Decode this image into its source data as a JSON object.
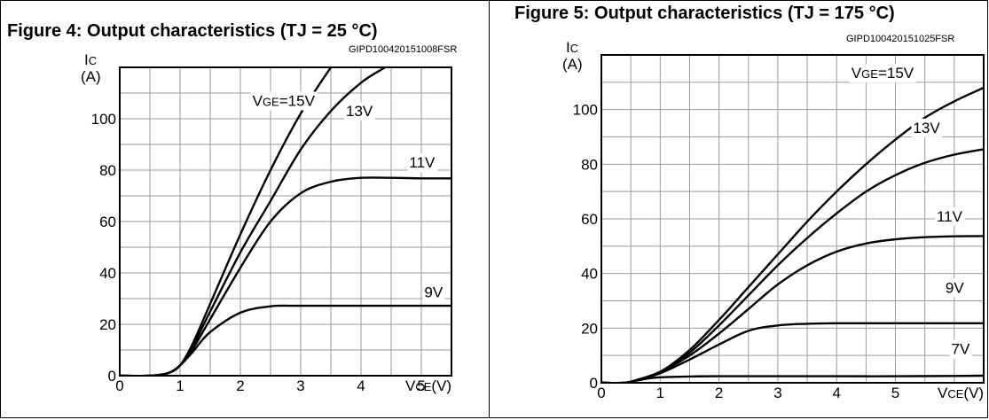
{
  "figures": [
    {
      "title": "Figure 4: Output characteristics (TJ = 25 °C)",
      "code": "GIPD100420151008FSR"
    },
    {
      "title": "Figure 5: Output characteristics (TJ = 175 °C)",
      "code": "GIPD100420151025FSR"
    }
  ],
  "chart_data": [
    {
      "type": "line",
      "title": "Figure 4: Output characteristics (TJ = 25 °C)",
      "ylabel_main": "I",
      "ylabel_sub": "C",
      "ylabel_unit": "(A)",
      "xlabel_main": "V",
      "xlabel_sub": "CE",
      "xlabel_unit": "(V)",
      "xlim": [
        0,
        5.5
      ],
      "ylim": [
        0,
        120
      ],
      "xticks": [
        0,
        1,
        2,
        3,
        4,
        5
      ],
      "yticks": [
        0,
        20,
        40,
        60,
        80,
        100
      ],
      "grid": true,
      "series": [
        {
          "name": "VGE=15V",
          "label_main": "V",
          "label_sub": "GE",
          "label_rest": "=15V",
          "x": [
            0,
            0.5,
            0.8,
            1.0,
            1.2,
            1.5,
            2.0,
            2.5,
            3.0,
            3.5
          ],
          "y": [
            0,
            0,
            1,
            4,
            12,
            28,
            55,
            80,
            102,
            120
          ]
        },
        {
          "name": "13V",
          "label_main": "",
          "label_sub": "",
          "label_rest": "13V",
          "x": [
            0,
            0.5,
            0.8,
            1.0,
            1.2,
            1.5,
            2.0,
            2.5,
            3.0,
            3.5,
            4.0,
            4.4
          ],
          "y": [
            0,
            0,
            1,
            4,
            11,
            25,
            48,
            68,
            88,
            103,
            114,
            120
          ]
        },
        {
          "name": "11V",
          "label_main": "",
          "label_sub": "",
          "label_rest": "11V",
          "x": [
            0,
            0.5,
            0.8,
            1.0,
            1.2,
            1.5,
            2.0,
            2.5,
            3.0,
            3.5,
            4.0,
            4.5,
            5.0,
            5.5
          ],
          "y": [
            0,
            0,
            1,
            4,
            10,
            22,
            42,
            60,
            71,
            75.5,
            77,
            77,
            76.8,
            76.8
          ]
        },
        {
          "name": "9V",
          "label_main": "",
          "label_sub": "",
          "label_rest": "9V",
          "x": [
            0,
            0.5,
            0.8,
            1.0,
            1.2,
            1.5,
            2.0,
            2.5,
            3.0,
            4.0,
            5.0,
            5.5
          ],
          "y": [
            0,
            0,
            1,
            4,
            9,
            17,
            24.5,
            27,
            27.2,
            27.2,
            27.2,
            27.2
          ]
        }
      ],
      "labels": [
        {
          "series": "VGE=15V",
          "x": 2.2,
          "y": 105
        },
        {
          "series": "13V",
          "x": 3.75,
          "y": 101
        },
        {
          "series": "11V",
          "x": 4.8,
          "y": 81
        },
        {
          "series": "9V",
          "x": 5.05,
          "y": 30.5
        }
      ]
    },
    {
      "type": "line",
      "title": "Figure 5: Output characteristics (TJ = 175 °C)",
      "ylabel_main": "I",
      "ylabel_sub": "C",
      "ylabel_unit": "(A)",
      "xlabel_main": "V",
      "xlabel_sub": "CE",
      "xlabel_unit": "(V)",
      "xlim": [
        0,
        6.5
      ],
      "ylim": [
        0,
        120
      ],
      "xticks": [
        0,
        1,
        2,
        3,
        4,
        5
      ],
      "yticks": [
        0,
        20,
        40,
        60,
        80,
        100
      ],
      "grid": true,
      "series": [
        {
          "name": "VGE=15V",
          "label_main": "V",
          "label_sub": "GE",
          "label_rest": "=15V",
          "x": [
            0,
            0.4,
            0.6,
            1.0,
            1.5,
            2.0,
            2.5,
            3.0,
            3.5,
            4.0,
            4.5,
            5.0,
            5.5,
            6.0,
            6.5
          ],
          "y": [
            0,
            0,
            1,
            4,
            12,
            23,
            35,
            47,
            59,
            70,
            80,
            89,
            97,
            103,
            108
          ]
        },
        {
          "name": "13V",
          "label_main": "",
          "label_sub": "",
          "label_rest": "13V",
          "x": [
            0,
            0.4,
            0.6,
            1.0,
            1.5,
            2.0,
            2.5,
            3.0,
            3.5,
            4.0,
            4.5,
            5.0,
            5.5,
            6.0,
            6.5
          ],
          "y": [
            0,
            0,
            1,
            4,
            11,
            21,
            32,
            43,
            53,
            62,
            70,
            76,
            80.5,
            83.5,
            85.5
          ]
        },
        {
          "name": "11V",
          "label_main": "",
          "label_sub": "",
          "label_rest": "11V",
          "x": [
            0,
            0.4,
            0.6,
            1.0,
            1.5,
            2.0,
            2.5,
            3.0,
            3.5,
            4.0,
            4.5,
            5.0,
            5.5,
            6.0,
            6.5
          ],
          "y": [
            0,
            0,
            1,
            4,
            10,
            18,
            27,
            36,
            43,
            48,
            51,
            52.5,
            53.3,
            53.6,
            53.7
          ]
        },
        {
          "name": "9V",
          "label_main": "",
          "label_sub": "",
          "label_rest": "9V",
          "x": [
            0,
            0.4,
            0.6,
            1.0,
            1.5,
            2.0,
            2.5,
            3.0,
            3.5,
            4.0,
            5.0,
            6.0,
            6.5
          ],
          "y": [
            0,
            0,
            1,
            3.5,
            8.5,
            14,
            19,
            21,
            21.6,
            21.8,
            21.8,
            21.8,
            21.8
          ]
        },
        {
          "name": "7V",
          "label_main": "",
          "label_sub": "",
          "label_rest": "7V",
          "x": [
            0,
            0.4,
            0.6,
            0.8,
            1.0,
            1.5,
            2.0,
            3.0,
            4.0,
            5.0,
            6.0,
            6.5
          ],
          "y": [
            0,
            0,
            0.8,
            1.6,
            2,
            2.3,
            2.4,
            2.4,
            2.4,
            2.4,
            2.5,
            2.6
          ]
        }
      ],
      "labels": [
        {
          "series": "VGE=15V",
          "x": 4.25,
          "y": 111.5
        },
        {
          "series": "13V",
          "x": 5.3,
          "y": 91.5
        },
        {
          "series": "11V",
          "x": 5.7,
          "y": 59
        },
        {
          "series": "9V",
          "x": 5.85,
          "y": 33
        },
        {
          "series": "7V",
          "x": 5.95,
          "y": 10.5
        }
      ]
    }
  ]
}
